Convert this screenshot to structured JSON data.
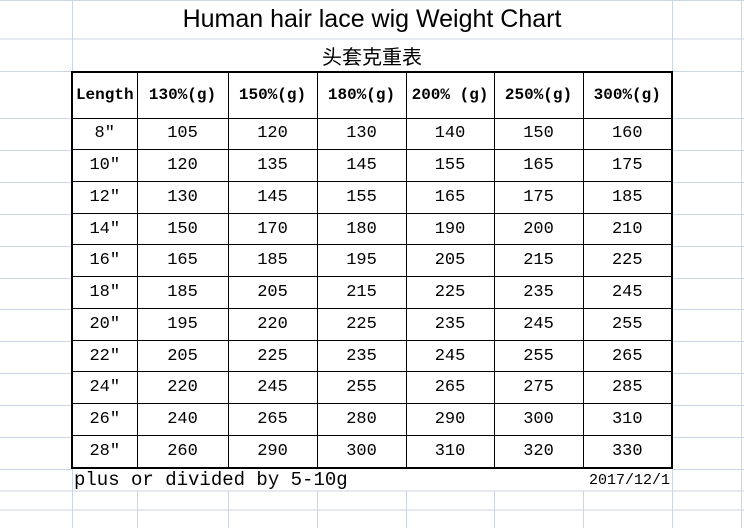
{
  "title": "Human hair lace wig Weight Chart",
  "subtitle": "头套克重表",
  "table": {
    "columns": [
      "Length",
      "130%(g)",
      "150%(g)",
      "180%(g)",
      "200% (g)",
      "250%(g)",
      "300%(g)"
    ],
    "rows": [
      {
        "length": "8″",
        "values": [
          105,
          120,
          130,
          140,
          150,
          160
        ]
      },
      {
        "length": "10″",
        "values": [
          120,
          135,
          145,
          155,
          165,
          175
        ]
      },
      {
        "length": "12″",
        "values": [
          130,
          145,
          155,
          165,
          175,
          185
        ]
      },
      {
        "length": "14″",
        "values": [
          150,
          170,
          180,
          190,
          200,
          210
        ]
      },
      {
        "length": "16″",
        "values": [
          165,
          185,
          195,
          205,
          215,
          225
        ]
      },
      {
        "length": "18″",
        "values": [
          185,
          205,
          215,
          225,
          235,
          245
        ]
      },
      {
        "length": "20″",
        "values": [
          195,
          220,
          225,
          235,
          245,
          255
        ]
      },
      {
        "length": "22″",
        "values": [
          205,
          225,
          235,
          245,
          255,
          265
        ]
      },
      {
        "length": "24″",
        "values": [
          220,
          245,
          255,
          265,
          275,
          285
        ]
      },
      {
        "length": "26″",
        "values": [
          240,
          265,
          280,
          290,
          300,
          310
        ]
      },
      {
        "length": "28″",
        "values": [
          260,
          290,
          300,
          310,
          320,
          330
        ]
      }
    ]
  },
  "footer": {
    "note": "plus or divided by 5-10g",
    "date": "2017/12/1"
  },
  "colors": {
    "gridline": "#ccd5e2",
    "table_border": "#000000",
    "text": "#000000",
    "background": "#ffffff"
  }
}
